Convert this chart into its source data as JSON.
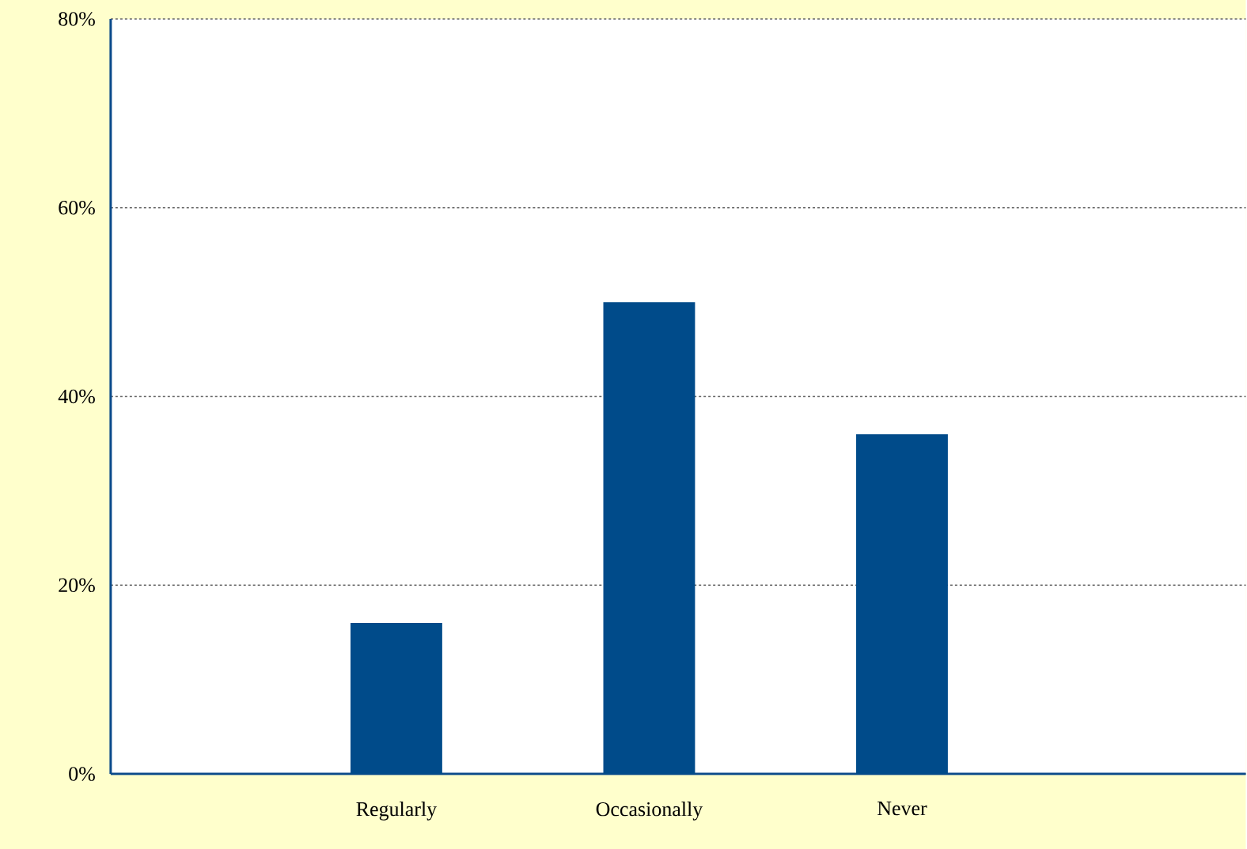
{
  "chart_data": {
    "type": "bar",
    "categories": [
      "Regularly",
      "Occasionally",
      "Never"
    ],
    "values": [
      16,
      50,
      36
    ],
    "color": "#004b8a",
    "ylim": [
      0,
      80
    ],
    "yticks": [
      {
        "value": 0,
        "label": "0%"
      },
      {
        "value": 20,
        "label": "20%"
      },
      {
        "value": 40,
        "label": "40%"
      },
      {
        "value": 60,
        "label": "60%"
      },
      {
        "value": 80,
        "label": "80%"
      }
    ],
    "grid": "y"
  }
}
